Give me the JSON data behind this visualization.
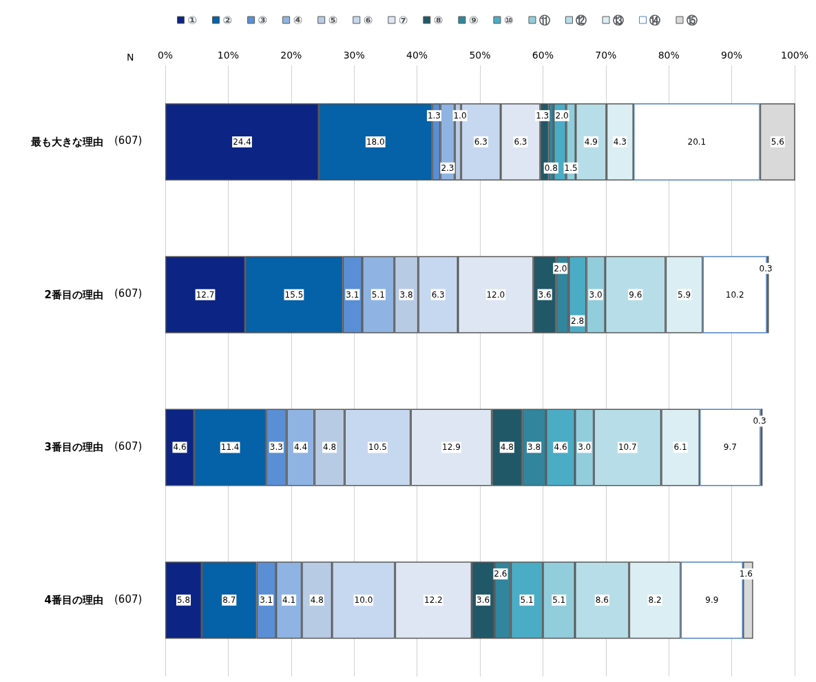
{
  "chart_data": {
    "type": "bar",
    "orientation": "horizontal",
    "stacked": true,
    "grid": "x",
    "legend": "top",
    "categories": [
      "最も大きな理由",
      "2番目の理由",
      "3番目の理由",
      "4番目の理由"
    ],
    "xlim": [
      0,
      100
    ],
    "xticks": [
      {
        "value": 0,
        "label": "0%"
      },
      {
        "value": 10,
        "label": "10%"
      },
      {
        "value": 20,
        "label": "20%"
      },
      {
        "value": 30,
        "label": "30%"
      },
      {
        "value": 40,
        "label": "40%"
      },
      {
        "value": 50,
        "label": "50%"
      },
      {
        "value": 60,
        "label": "60%"
      },
      {
        "value": 70,
        "label": "70%"
      },
      {
        "value": 80,
        "label": "80%"
      },
      {
        "value": 90,
        "label": "90%"
      },
      {
        "value": 100,
        "label": "100%"
      }
    ],
    "annotations": [
      "N",
      "(607)",
      "(607)",
      "(607)",
      "(607)"
    ],
    "series": [
      {
        "name": "①",
        "color": "#0c2483",
        "values": [
          24.4,
          12.7,
          4.6,
          5.8
        ],
        "value_labels": [
          "24.4",
          "12.7",
          "4.6",
          "5.8"
        ]
      },
      {
        "name": "②",
        "color": "#0561a8",
        "values": [
          18.0,
          15.5,
          11.4,
          8.7
        ],
        "value_labels": [
          "18.0",
          "15.5",
          "11.4",
          "8.7"
        ]
      },
      {
        "name": "③",
        "color": "#5a8fd6",
        "values": [
          1.3,
          3.1,
          3.3,
          3.1
        ],
        "value_labels": [
          "1.3",
          "3.1",
          "3.3",
          "3.1"
        ]
      },
      {
        "name": "④",
        "color": "#8fb4e3",
        "values": [
          2.3,
          5.1,
          4.4,
          4.1
        ],
        "value_labels": [
          "2.3",
          "5.1",
          "4.4",
          "4.1"
        ]
      },
      {
        "name": "⑤",
        "color": "#b8cbe4",
        "values": [
          1.0,
          3.8,
          4.8,
          4.8
        ],
        "value_labels": [
          "1.0",
          "3.8",
          "4.8",
          "4.8"
        ]
      },
      {
        "name": "⑥",
        "color": "#c6d8f0",
        "values": [
          6.3,
          6.3,
          10.5,
          10.0
        ],
        "value_labels": [
          "6.3",
          "6.3",
          "10.5",
          "10.0"
        ]
      },
      {
        "name": "⑦",
        "color": "#dde6f2",
        "values": [
          6.3,
          12.0,
          12.9,
          12.2
        ],
        "value_labels": [
          "6.3",
          "12.0",
          "12.9",
          "12.2"
        ]
      },
      {
        "name": "⑧",
        "color": "#215868",
        "values": [
          1.3,
          3.6,
          4.8,
          3.6
        ],
        "value_labels": [
          "1.3",
          "3.6",
          "4.8",
          "3.6"
        ]
      },
      {
        "name": "⑨",
        "color": "#31859c",
        "values": [
          0.8,
          2.0,
          3.8,
          2.6
        ],
        "value_labels": [
          "0.8",
          "2.0",
          "3.8",
          "2.6"
        ]
      },
      {
        "name": "⑩",
        "color": "#4bacc6",
        "values": [
          2.0,
          2.8,
          4.6,
          5.1
        ],
        "value_labels": [
          "2.0",
          "2.8",
          "4.6",
          "5.1"
        ]
      },
      {
        "name": "⑪",
        "color": "#92cddc",
        "values": [
          1.5,
          3.0,
          3.0,
          5.1
        ],
        "value_labels": [
          "1.5",
          "3.0",
          "3.0",
          "5.1"
        ]
      },
      {
        "name": "⑫",
        "color": "#b7dee8",
        "values": [
          4.9,
          9.6,
          10.7,
          8.6
        ],
        "value_labels": [
          "4.9",
          "9.6",
          "10.7",
          "8.6"
        ]
      },
      {
        "name": "⑬",
        "color": "#daeef3",
        "values": [
          4.3,
          5.9,
          6.1,
          8.2
        ],
        "value_labels": [
          "4.3",
          "5.9",
          "6.1",
          "8.2"
        ]
      },
      {
        "name": "⑭",
        "color": "#ffffff",
        "values": [
          20.1,
          10.2,
          9.7,
          9.9
        ],
        "value_labels": [
          "20.1",
          "10.2",
          "9.7",
          "9.9"
        ]
      },
      {
        "name": "⑮",
        "color": "#d9d9d9",
        "values": [
          5.6,
          0.3,
          0.3,
          1.6
        ],
        "value_labels": [
          "5.6",
          "0.3",
          "0.3",
          "1.6"
        ]
      }
    ]
  }
}
